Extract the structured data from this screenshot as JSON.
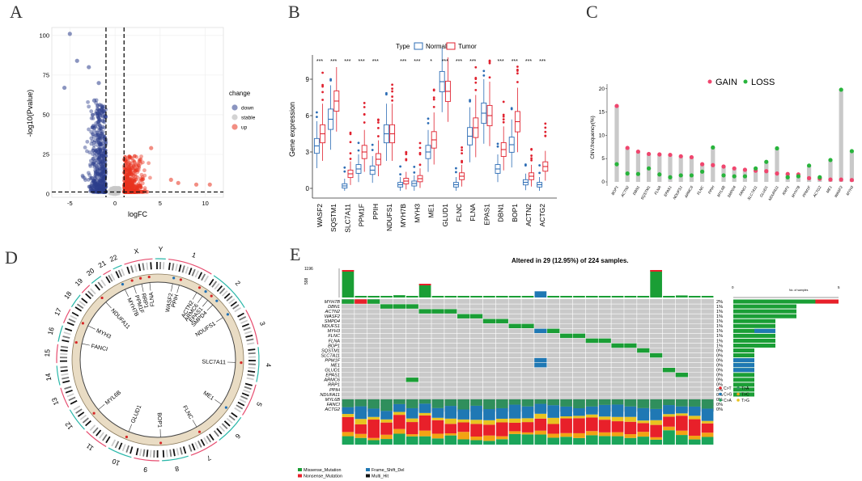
{
  "panels": {
    "a": "A",
    "b": "B",
    "c": "C",
    "d": "D",
    "e": "E"
  },
  "volcano": {
    "xlabel": "logFC",
    "ylabel": "-log10(Pvalue)",
    "xticks": [
      "-5",
      "0",
      "5",
      "10"
    ],
    "yticks": [
      "0",
      "25",
      "50",
      "75",
      "100"
    ],
    "legend_title": "change",
    "legend": [
      "down",
      "stable",
      "up"
    ],
    "colors": {
      "down": "#2c3e8c",
      "stable": "#c8c8c8",
      "up": "#e8321e"
    },
    "xlim": [
      -7,
      12
    ],
    "ylim": [
      -2,
      105
    ]
  },
  "boxplot": {
    "legend_title": "Type",
    "legend": [
      "Normal",
      "Tumor"
    ],
    "ylabel": "Gene expression",
    "yticks": [
      "0",
      "3",
      "6",
      "9"
    ],
    "ylim": [
      -0.8,
      11
    ],
    "colors": {
      "normal": "#2d6db5",
      "tumor": "#e0222f"
    },
    "genes": [
      "WASF2",
      "SQSTM1",
      "SLC7A11",
      "PPM1F",
      "PPIH",
      "NDUFS1",
      "MYH7B",
      "MYH3",
      "ME1",
      "GLUD1",
      "FLNC",
      "FLNA",
      "EPAS1",
      "DBN1",
      "BOP1",
      "ACTN2",
      "ACTG2"
    ],
    "signif": [
      "***",
      "***",
      "***",
      "***",
      "***",
      "",
      "***",
      "***",
      "*",
      "***",
      "***",
      "***",
      "",
      "***",
      "***",
      "***",
      "***"
    ],
    "normal_median": [
      3.5,
      5.7,
      0.2,
      1.6,
      1.5,
      4.5,
      0.3,
      0.4,
      3.0,
      8.8,
      0.3,
      4.3,
      6.2,
      1.6,
      3.6,
      0.5,
      0.3
    ],
    "tumor_median": [
      4.5,
      7.2,
      1.2,
      3.0,
      2.4,
      4.5,
      0.6,
      0.8,
      4.0,
      8.0,
      1.0,
      5.0,
      6.0,
      3.2,
      5.5,
      1.0,
      1.8
    ]
  },
  "cnv": {
    "ylabel": "CNV.frequency(%)",
    "yticks": [
      "0",
      "5",
      "10",
      "15",
      "20"
    ],
    "ylim": [
      0,
      21
    ],
    "legend": [
      "GAIN",
      "LOSS"
    ],
    "colors": {
      "gain": "#f0466e",
      "loss": "#28b43c"
    },
    "genes": [
      "BOP1",
      "ACTN2",
      "DBN1",
      "SQSTM1",
      "FLNA",
      "EPAS1",
      "NDUFS1",
      "ARMC6",
      "FLNC",
      "PPIH",
      "MYL6B",
      "SMPD4",
      "FANCI",
      "SLC7A11",
      "GLUD1",
      "NDUFA11",
      "RRP1",
      "MYH7B",
      "PPM1F",
      "ACTG2",
      "ME1",
      "WASF2",
      "MYH3"
    ],
    "gain": [
      16.3,
      7.3,
      6.5,
      6.0,
      5.9,
      5.8,
      5.5,
      5.3,
      3.8,
      3.6,
      3.3,
      2.9,
      2.6,
      2.4,
      2.3,
      1.8,
      1.7,
      1.6,
      0.8,
      0.7,
      0.5,
      0.5,
      0.4
    ],
    "loss": [
      3.8,
      1.8,
      1.7,
      2.9,
      1.6,
      1.0,
      1.4,
      1.4,
      2.2,
      7.4,
      1.4,
      1.2,
      1.2,
      2.9,
      4.3,
      7.2,
      1.0,
      1.2,
      3.5,
      1.0,
      4.7,
      19.8,
      6.6
    ]
  },
  "circos": {
    "chromosomes": [
      "1",
      "2",
      "3",
      "4",
      "5",
      "6",
      "7",
      "8",
      "9",
      "10",
      "11",
      "12",
      "13",
      "14",
      "15",
      "16",
      "17",
      "18",
      "19",
      "20",
      "21",
      "22",
      "X",
      "Y"
    ],
    "genes": [
      "FLNA",
      "WASF2",
      "PPIH",
      "ACTN2",
      "ARMC6",
      "EPAS1",
      "SMPD4",
      "NDUFS1",
      "SLC7A11",
      "ME1",
      "FLNC",
      "BOP1",
      "GLUD1",
      "MYL6B",
      "FANCI",
      "MYH3",
      "NDUFA11",
      "MYH7B",
      "PPM1F",
      "RRP1"
    ]
  },
  "oncoplot": {
    "title": "Altered in 29 (12.95%) of 224 samples.",
    "tmb_ticks": [
      "1196",
      "598"
    ],
    "genes": [
      "MYH7B",
      "DBN1",
      "ACTN2",
      "WASF2",
      "SMPD4",
      "NDUFS1",
      "MYH3",
      "FLNC",
      "FLNA",
      "BOP1",
      "SQSTM1",
      "SLC7A11",
      "PPM1F",
      "ME1",
      "GLUD1",
      "EPAS1",
      "ARMC6",
      "RRP1",
      "PPIH",
      "NDUFA11",
      "MYL6B",
      "FANCI",
      "ACTG2"
    ],
    "percents": [
      "2%",
      "1%",
      "1%",
      "1%",
      "1%",
      "1%",
      "1%",
      "1%",
      "1%",
      "1%",
      "0%",
      "0%",
      "0%",
      "0%",
      "0%",
      "0%",
      "0%",
      "0%",
      "0%",
      "0%",
      "0%",
      "0%",
      "0%"
    ],
    "gene_counts": [
      5,
      3,
      3,
      3,
      2,
      2,
      2,
      2,
      2,
      2,
      1,
      1,
      1,
      1,
      1,
      1,
      1,
      1,
      1,
      1,
      0,
      0,
      0
    ],
    "side_axis_label": "No. of samples",
    "side_ticks": [
      "0",
      "5"
    ],
    "legend": [
      "Missense_Mutation",
      "Nonsense_Mutation",
      "Frame_Shift_Del",
      "Multi_Hit"
    ],
    "legend_colors": [
      "#1a9e35",
      "#e8202a",
      "#1f78b4",
      "#111111"
    ],
    "titv_legend": [
      "C>T",
      "C>G",
      "C>A",
      "T>A",
      "T>C",
      "T>G"
    ],
    "titv_colors": [
      "#e8202a",
      "#1f78b4",
      "#1ba55a",
      "#2f8f5c",
      "#f2a313",
      "#e8c320"
    ]
  }
}
